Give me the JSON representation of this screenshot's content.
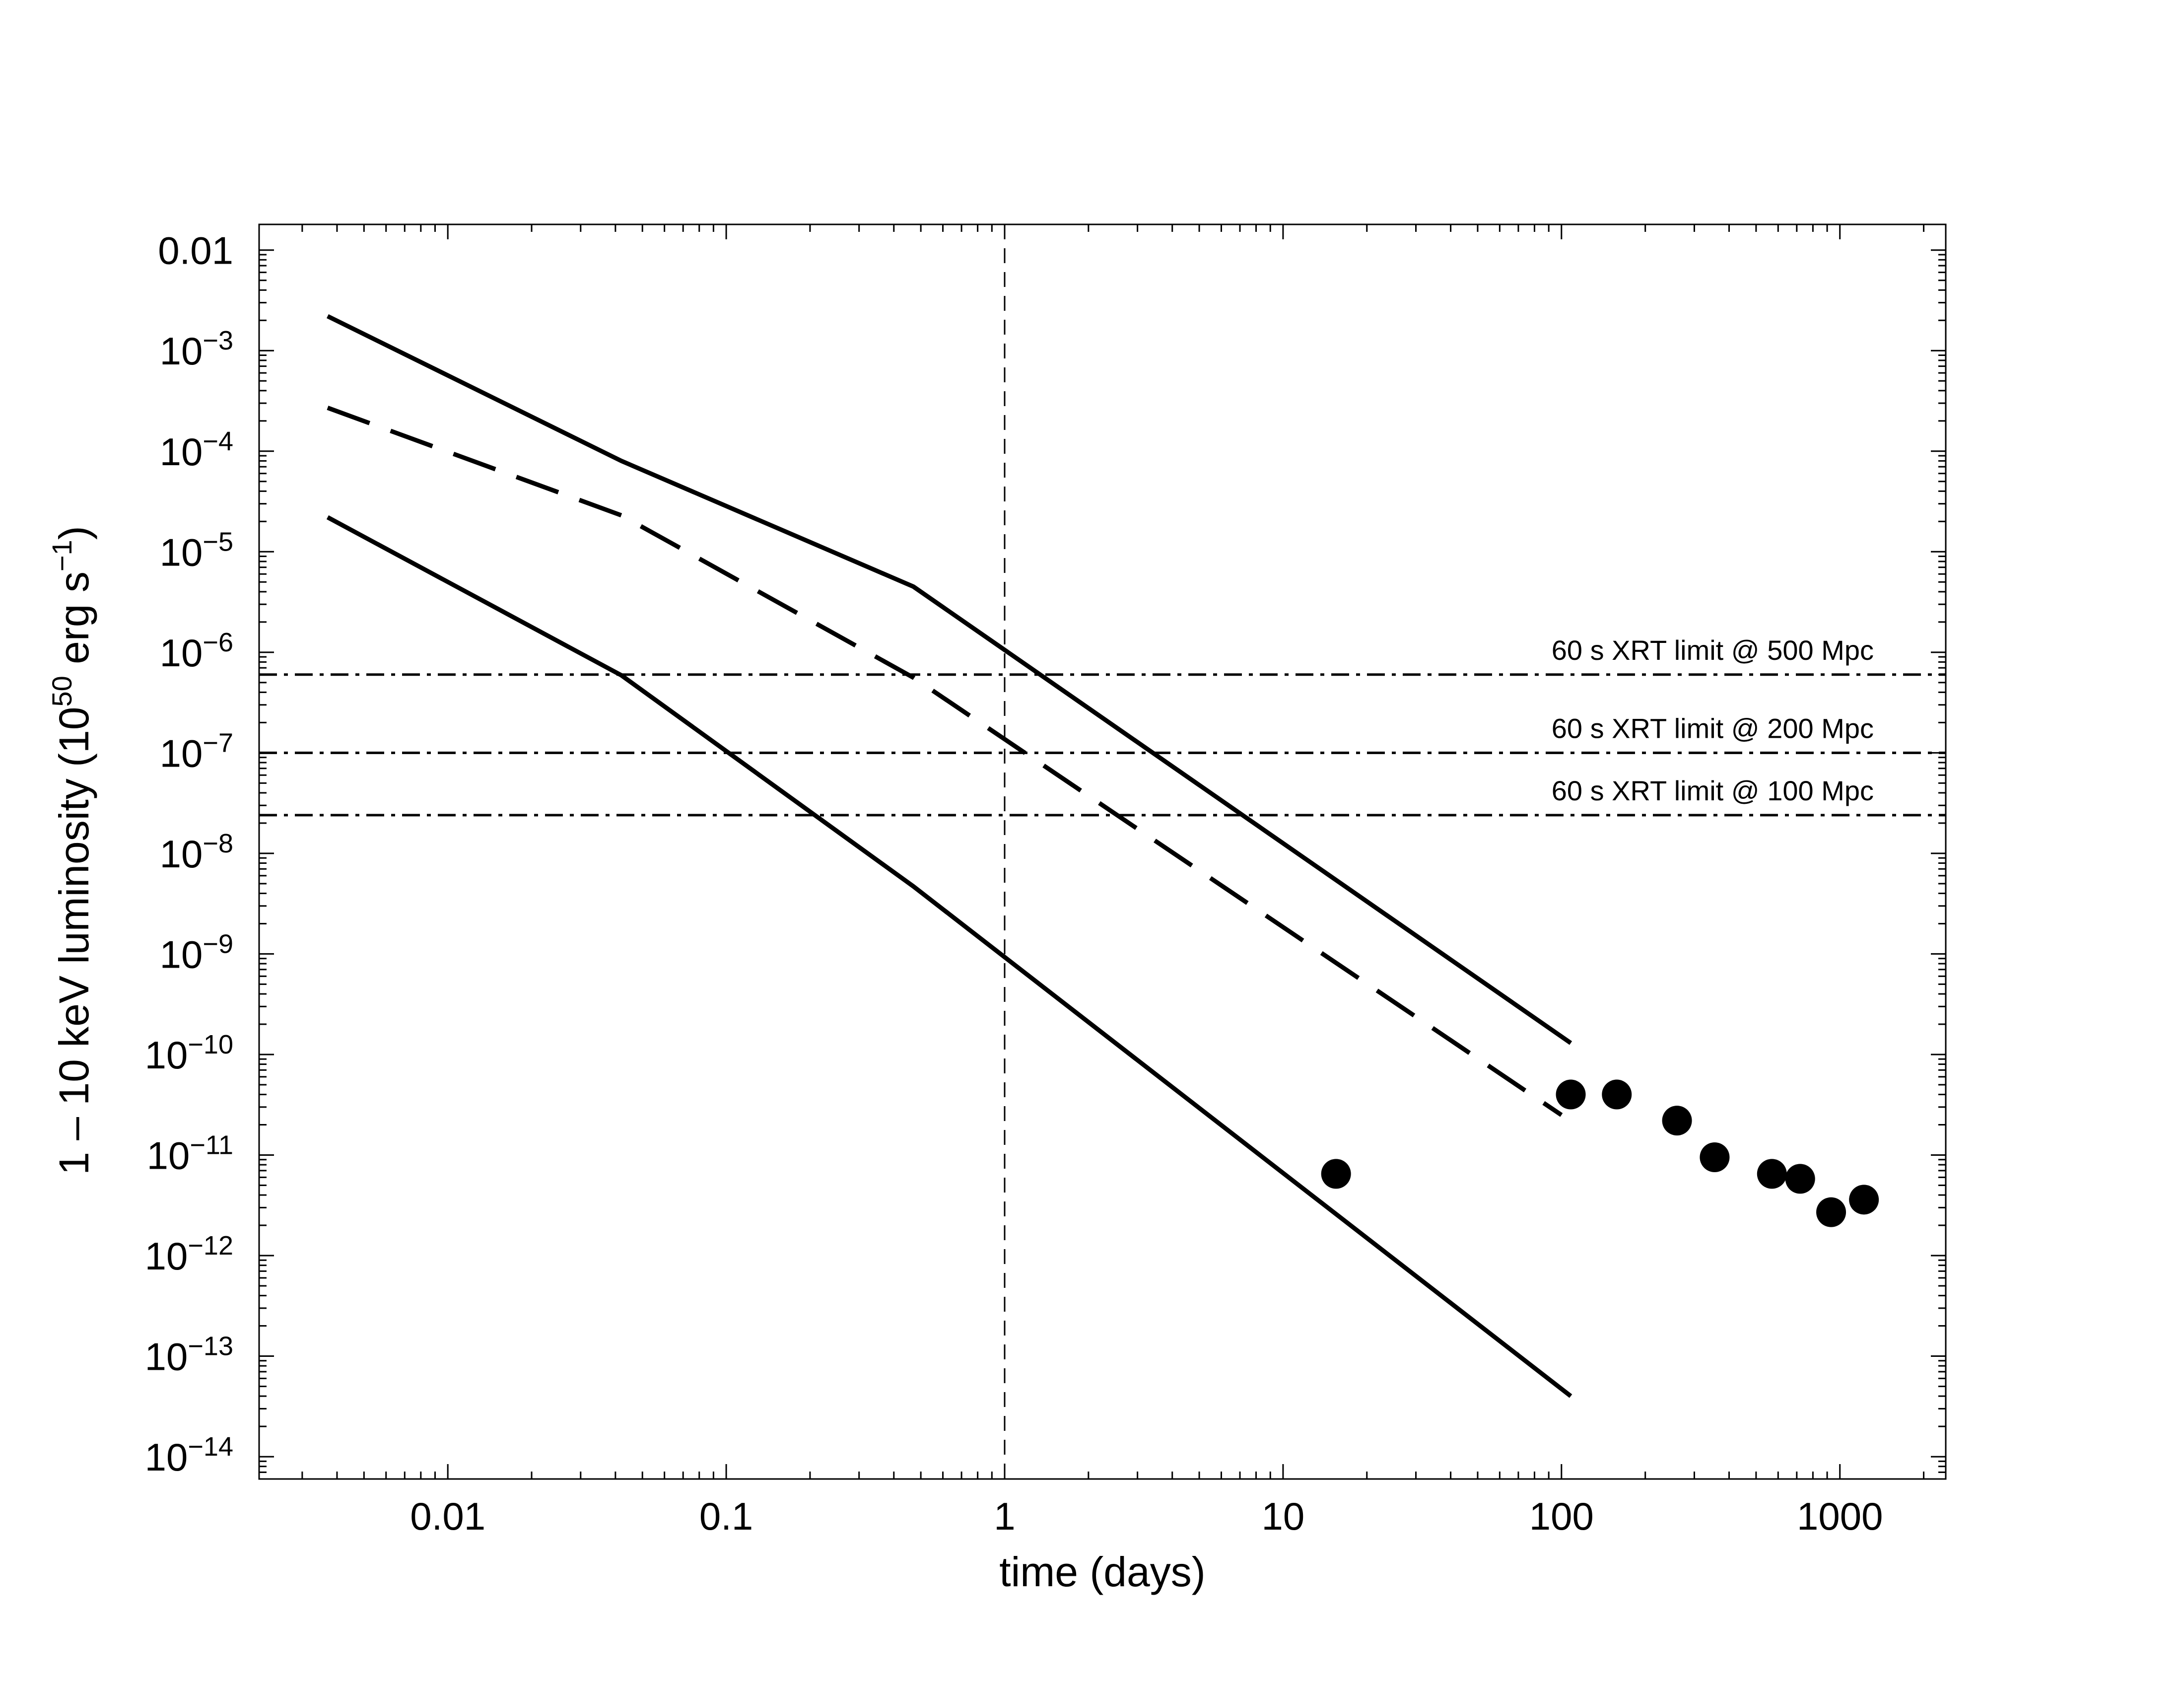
{
  "chart_data": {
    "type": "line",
    "xlabel": "time (days)",
    "ylabel_main": "1 – 10 keV luminosity (10",
    "ylabel_exp": "50",
    "ylabel_mid": " erg s",
    "ylabel_exp2": "−1",
    "ylabel_end": ")",
    "x_scale": "log",
    "y_scale": "log",
    "xlim": [
      0.0021,
      2400
    ],
    "ylim": [
      6e-15,
      0.018
    ],
    "grid": false,
    "x_ticks": [
      {
        "value": 0.01,
        "label": "0.01"
      },
      {
        "value": 0.1,
        "label": "0.1"
      },
      {
        "value": 1,
        "label": "1"
      },
      {
        "value": 10,
        "label": "10"
      },
      {
        "value": 100,
        "label": "100"
      },
      {
        "value": 1000,
        "label": "1000"
      }
    ],
    "y_ticks": [
      {
        "value": 0.01,
        "base": "0.01",
        "exp": ""
      },
      {
        "value": 0.001,
        "base": "10",
        "exp": "−3"
      },
      {
        "value": 0.0001,
        "base": "10",
        "exp": "−4"
      },
      {
        "value": 1e-05,
        "base": "10",
        "exp": "−5"
      },
      {
        "value": 1e-06,
        "base": "10",
        "exp": "−6"
      },
      {
        "value": 1e-07,
        "base": "10",
        "exp": "−7"
      },
      {
        "value": 1e-08,
        "base": "10",
        "exp": "−8"
      },
      {
        "value": 1e-09,
        "base": "10",
        "exp": "−9"
      },
      {
        "value": 1e-10,
        "base": "10",
        "exp": "−10"
      },
      {
        "value": 1e-11,
        "base": "10",
        "exp": "−11"
      },
      {
        "value": 1e-12,
        "base": "10",
        "exp": "−12"
      },
      {
        "value": 1e-13,
        "base": "10",
        "exp": "−13"
      },
      {
        "value": 1e-14,
        "base": "10",
        "exp": "−14"
      }
    ],
    "series": [
      {
        "style": "solid",
        "x": [
          0.0037,
          0.042,
          0.47,
          108
        ],
        "y": [
          0.0022,
          8e-05,
          4.5e-06,
          1.3e-10
        ]
      },
      {
        "style": "dashed",
        "x": [
          0.0037,
          0.042,
          0.47,
          100
        ],
        "y": [
          0.00027,
          2.3e-05,
          5.6e-07,
          2.5e-11
        ]
      },
      {
        "style": "solid",
        "x": [
          0.0037,
          0.042,
          0.47,
          108
        ],
        "y": [
          2.2e-05,
          5.9e-07,
          4.7e-09,
          4e-14
        ]
      },
      {
        "style": "points",
        "x": [
          15.5,
          108,
          158,
          260,
          355,
          570,
          720,
          930,
          1220
        ],
        "y": [
          6.5e-12,
          4e-11,
          4e-11,
          2.2e-11,
          9.5e-12,
          6.5e-12,
          5.8e-12,
          2.7e-12,
          3.6e-12
        ]
      }
    ],
    "hlines": [
      {
        "y": 6e-07,
        "label": "60 s XRT limit @ 500 Mpc"
      },
      {
        "y": 1e-07,
        "label": "60 s XRT limit @ 200 Mpc"
      },
      {
        "y": 2.4e-08,
        "label": "60 s XRT limit @ 100 Mpc"
      }
    ],
    "vline": {
      "x": 1
    }
  }
}
